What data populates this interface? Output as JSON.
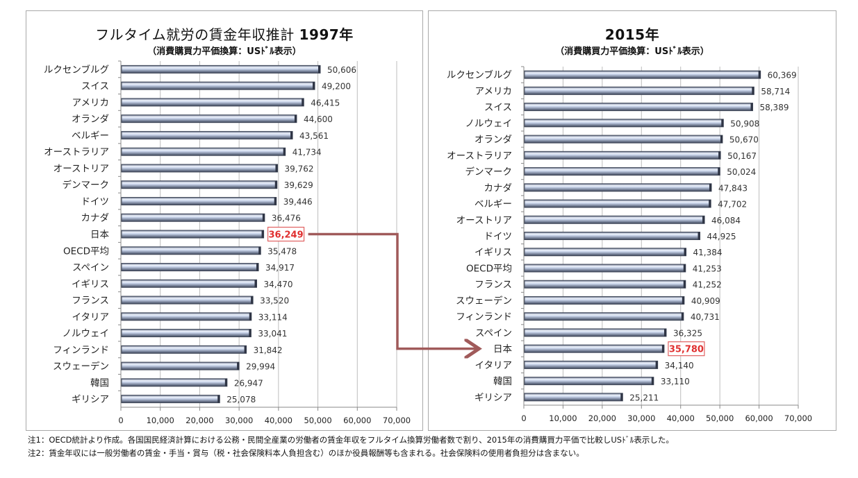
{
  "chart_data": [
    {
      "type": "bar",
      "orientation": "horizontal",
      "title": "フルタイム就労の賃金年収推計",
      "title_year": "1997年",
      "subtitle": "（消費購買力平価換算：USﾄﾞﾙ表示）",
      "xlabel": "",
      "ylabel": "",
      "xlim": [
        0,
        70000
      ],
      "xticks": [
        0,
        10000,
        20000,
        30000,
        40000,
        50000,
        60000,
        70000
      ],
      "xtick_labels": [
        "0",
        "10,000",
        "20,000",
        "30,000",
        "40,000",
        "50,000",
        "60,000",
        "70,000"
      ],
      "grid": true,
      "categories": [
        "ルクセンブルグ",
        "スイス",
        "アメリカ",
        "オランダ",
        "ベルギー",
        "オーストラリア",
        "オーストリア",
        "デンマーク",
        "ドイツ",
        "カナダ",
        "日本",
        "OECD平均",
        "スペイン",
        "イギリス",
        "フランス",
        "イタリア",
        "ノルウェイ",
        "フィンランド",
        "スウェーデン",
        "韓国",
        "ギリシア"
      ],
      "values": [
        50606,
        49200,
        46415,
        44600,
        43561,
        41734,
        39762,
        39629,
        39446,
        36476,
        36249,
        35478,
        34917,
        34470,
        33520,
        33114,
        33041,
        31842,
        29994,
        26947,
        25078
      ],
      "value_labels": [
        "50,606",
        "49,200",
        "46,415",
        "44,600",
        "43,561",
        "41,734",
        "39,762",
        "39,629",
        "39,446",
        "36,476",
        "36,249",
        "35,478",
        "34,917",
        "34,470",
        "33,520",
        "33,114",
        "33,041",
        "31,842",
        "29,994",
        "26,947",
        "25,078"
      ],
      "highlight": {
        "category": "日本",
        "label": "36,249",
        "color": "#e03030"
      }
    },
    {
      "type": "bar",
      "orientation": "horizontal",
      "title": "2015年",
      "subtitle": "（消費購買力平価換算：USﾄﾞﾙ表示）",
      "xlabel": "",
      "ylabel": "",
      "xlim": [
        0,
        70000
      ],
      "xticks": [
        0,
        10000,
        20000,
        30000,
        40000,
        50000,
        60000,
        70000
      ],
      "xtick_labels": [
        "0",
        "10,000",
        "20,000",
        "30,000",
        "40,000",
        "50,000",
        "60,000",
        "70,000"
      ],
      "grid": true,
      "categories": [
        "ルクセンブルグ",
        "アメリカ",
        "スイス",
        "ノルウェイ",
        "オランダ",
        "オーストラリア",
        "デンマーク",
        "カナダ",
        "ベルギー",
        "オーストリア",
        "ドイツ",
        "イギリス",
        "OECD平均",
        "フランス",
        "スウェーデン",
        "フィンランド",
        "スペイン",
        "日本",
        "イタリア",
        "韓国",
        "ギリシア"
      ],
      "values": [
        60369,
        58714,
        58389,
        50908,
        50670,
        50167,
        50024,
        47843,
        47702,
        46084,
        44925,
        41384,
        41253,
        41252,
        40909,
        40731,
        36325,
        35780,
        34140,
        33110,
        25211
      ],
      "value_labels": [
        "60,369",
        "58,714",
        "58,389",
        "50,908",
        "50,670",
        "50,167",
        "50,024",
        "47,843",
        "47,702",
        "46,084",
        "44,925",
        "41,384",
        "41,253",
        "41,252",
        "40,909",
        "40,731",
        "36,325",
        "35,780",
        "34,140",
        "33,110",
        "25,211"
      ],
      "highlight": {
        "category": "日本",
        "label": "35,780",
        "color": "#e03030"
      }
    }
  ],
  "connector": {
    "from": "1997 日本",
    "to": "2015 日本",
    "color": "#a05a5a"
  },
  "colors": {
    "bar_light": "#dfe7f5",
    "bar_dark": "#4a5468",
    "grid": "#c0c0c0",
    "highlight": "#e03030"
  },
  "notes": [
    "注1：OECD統計より作成。各国国民経済計算における公務・民間全産業の労働者の賃金年収をフルタイム換算労働者数で割り、2015年の消費購買力平価で比較しUSﾄﾞﾙ表示した。",
    "注2：賃金年収には一般労働者の賃金・手当・賞与（税・社会保険料本人負担含む）のほか役員報酬等も含まれる。社会保険料の使用者負担分は含まない。"
  ]
}
